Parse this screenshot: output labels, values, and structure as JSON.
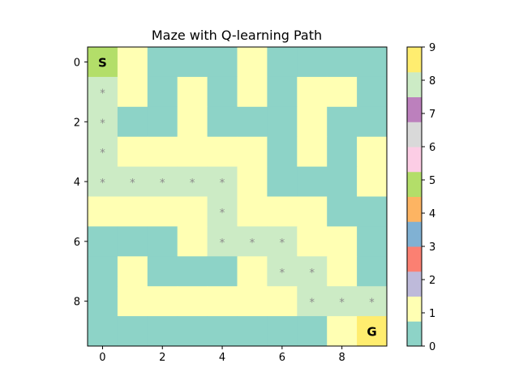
{
  "chart_data": {
    "type": "heatmap",
    "title": "Maze with Q-learning Path",
    "xlabel": "",
    "ylabel": "",
    "x_ticks": [
      "0",
      "2",
      "4",
      "6",
      "8"
    ],
    "y_ticks": [
      "0",
      "2",
      "4",
      "6",
      "8"
    ],
    "grid": false,
    "grid_values": [
      [
        5,
        1,
        0,
        0,
        0,
        1,
        0,
        0,
        0,
        0
      ],
      [
        8,
        1,
        0,
        1,
        0,
        1,
        0,
        1,
        1,
        0
      ],
      [
        8,
        0,
        0,
        1,
        0,
        0,
        0,
        1,
        0,
        0
      ],
      [
        8,
        1,
        1,
        1,
        1,
        1,
        0,
        1,
        0,
        1
      ],
      [
        8,
        8,
        8,
        8,
        8,
        1,
        0,
        0,
        0,
        1
      ],
      [
        1,
        1,
        1,
        1,
        8,
        1,
        1,
        1,
        0,
        0
      ],
      [
        0,
        0,
        0,
        1,
        8,
        8,
        8,
        1,
        1,
        0
      ],
      [
        0,
        1,
        0,
        0,
        0,
        1,
        8,
        8,
        1,
        0
      ],
      [
        0,
        1,
        1,
        1,
        1,
        1,
        1,
        8,
        8,
        8
      ],
      [
        0,
        0,
        0,
        0,
        0,
        0,
        0,
        0,
        1,
        9
      ]
    ],
    "start": {
      "row": 0,
      "col": 0,
      "label": "S"
    },
    "goal": {
      "row": 9,
      "col": 9,
      "label": "G"
    },
    "path_marker": "*",
    "path": [
      [
        1,
        0
      ],
      [
        2,
        0
      ],
      [
        3,
        0
      ],
      [
        4,
        0
      ],
      [
        4,
        1
      ],
      [
        4,
        2
      ],
      [
        4,
        3
      ],
      [
        4,
        4
      ],
      [
        5,
        4
      ],
      [
        6,
        4
      ],
      [
        6,
        5
      ],
      [
        6,
        6
      ],
      [
        7,
        6
      ],
      [
        7,
        7
      ],
      [
        8,
        7
      ],
      [
        8,
        8
      ],
      [
        8,
        9
      ]
    ],
    "colormap": "Set3",
    "colormap_colors": [
      "#8dd3c7",
      "#ffffb3",
      "#bebada",
      "#fb8072",
      "#80b1d3",
      "#fdb462",
      "#b3de69",
      "#fccde5",
      "#d9d9d9",
      "#bc80bd",
      "#ccebc5",
      "#ffed6f"
    ],
    "colorbar": {
      "range": [
        0,
        9
      ],
      "ticks": [
        "0",
        "1",
        "2",
        "3",
        "4",
        "5",
        "6",
        "7",
        "8",
        "9"
      ]
    }
  }
}
